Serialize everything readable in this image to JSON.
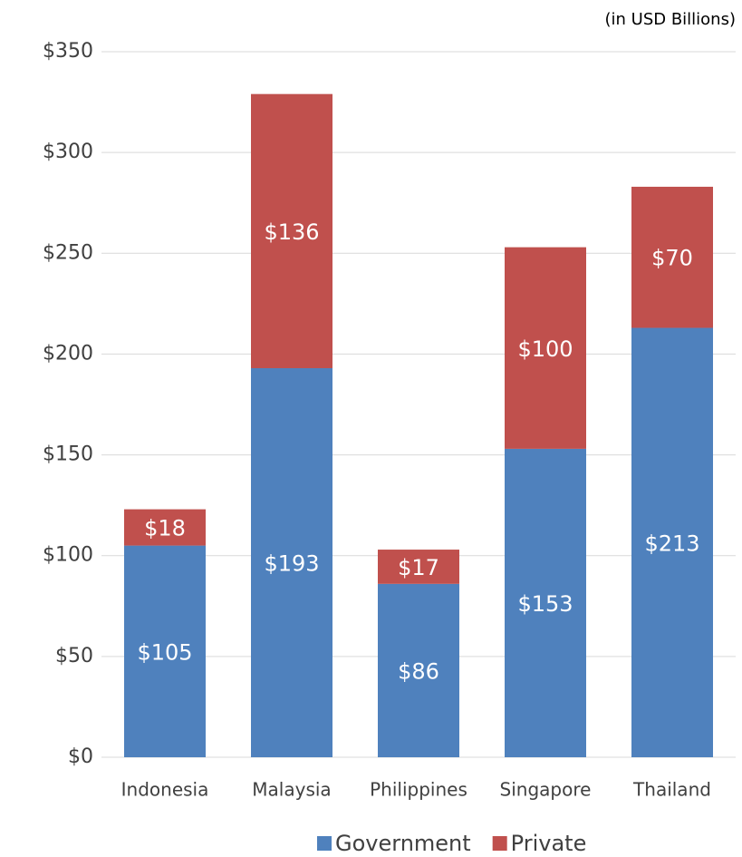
{
  "chart_data": {
    "type": "stacked_bar",
    "subtitle": "(in USD Billions)",
    "categories": [
      "Indonesia",
      "Malaysia",
      "Philippines",
      "Singapore",
      "Thailand"
    ],
    "series": [
      {
        "name": "Government",
        "color": "#4f81bd",
        "values": [
          105,
          193,
          86,
          153,
          213
        ],
        "value_labels": [
          "$105",
          "$193",
          "$86",
          "$153",
          "$213"
        ]
      },
      {
        "name": "Private",
        "color": "#c0504d",
        "values": [
          18,
          136,
          17,
          100,
          70
        ],
        "value_labels": [
          "$18",
          "$136",
          "$17",
          "$100",
          "$70"
        ]
      }
    ],
    "ylim": [
      0,
      350
    ],
    "yticks": [
      {
        "value": 0,
        "label": "$0"
      },
      {
        "value": 50,
        "label": "$50"
      },
      {
        "value": 100,
        "label": "$100"
      },
      {
        "value": 150,
        "label": "$150"
      },
      {
        "value": 200,
        "label": "$200"
      },
      {
        "value": 250,
        "label": "$250"
      },
      {
        "value": 300,
        "label": "$300"
      },
      {
        "value": 350,
        "label": "$350"
      }
    ],
    "grid": true,
    "legend": "bottom"
  }
}
